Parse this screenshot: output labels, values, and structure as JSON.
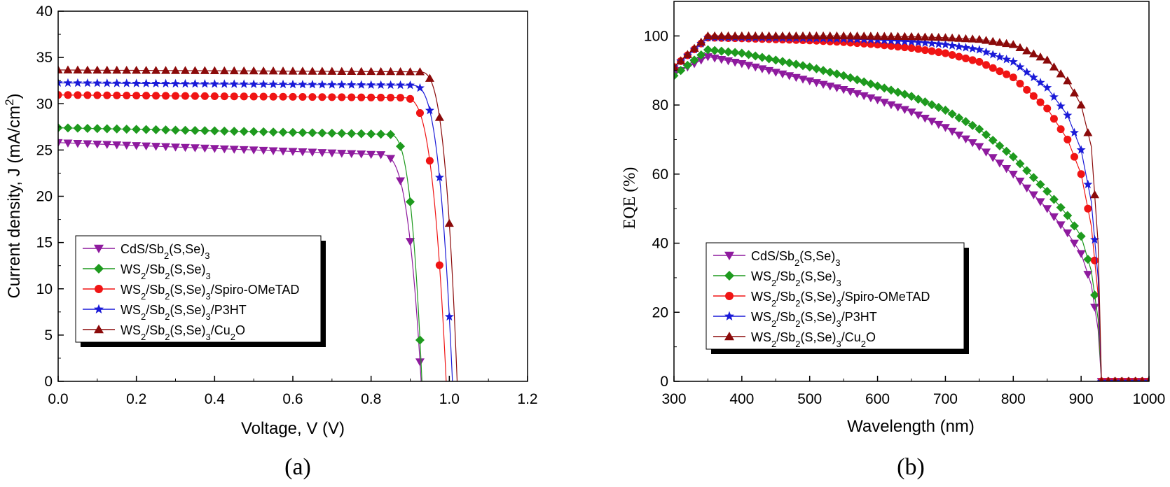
{
  "chart_data": [
    {
      "type": "line",
      "panel_label": "(a)",
      "xlabel": "Voltage, V (V)",
      "ylabel": "Current density, J (mA/cm2)",
      "ylabel_main": "Current density, J (mA/cm",
      "ylabel_sup": "2",
      "ylabel_tail": ")",
      "xlim": [
        0.0,
        1.2
      ],
      "ylim": [
        0,
        40
      ],
      "xticks": [
        "0.0",
        "0.2",
        "0.4",
        "0.6",
        "0.8",
        "1.0",
        "1.2"
      ],
      "yticks": [
        "0",
        "5",
        "10",
        "15",
        "20",
        "25",
        "30",
        "35",
        "40"
      ],
      "legend_position": "lower-left",
      "series": [
        {
          "name": "CdS/Sb2(S,Se)3",
          "label_parts": [
            [
              "CdS/Sb",
              ""
            ],
            [
              "2",
              "sub"
            ],
            [
              "(S,Se)",
              ""
            ],
            [
              "3",
              "sub"
            ]
          ],
          "color": "#8e1a9e",
          "marker": "tri-down",
          "jsc": 25.8,
          "voc": 0.928,
          "knee": 0.82,
          "flat_slope": 1.3
        },
        {
          "name": "WS2/Sb2(S,Se)3",
          "label_parts": [
            [
              "WS",
              ""
            ],
            [
              "2",
              "sub"
            ],
            [
              "/Sb",
              ""
            ],
            [
              "2",
              "sub"
            ],
            [
              "(S,Se)",
              ""
            ],
            [
              "3",
              "sub"
            ]
          ],
          "color": "#1e9a1e",
          "marker": "diamond",
          "jsc": 27.4,
          "voc": 0.93,
          "knee": 0.84,
          "flat_slope": 0.7
        },
        {
          "name": "WS2/Sb2(S,Se)3/Spiro-OMeTAD",
          "label_parts": [
            [
              "WS",
              ""
            ],
            [
              "2",
              "sub"
            ],
            [
              "/Sb",
              ""
            ],
            [
              "2",
              "sub"
            ],
            [
              "(S,Se)",
              ""
            ],
            [
              "3",
              "sub"
            ],
            [
              "/Spiro-OMeTAD",
              ""
            ]
          ],
          "color": "#f01414",
          "marker": "circle",
          "jsc": 30.95,
          "voc": 0.992,
          "knee": 0.88,
          "flat_slope": 0.3
        },
        {
          "name": "WS2/Sb2(S,Se)3/P3HT",
          "label_parts": [
            [
              "WS",
              ""
            ],
            [
              "2",
              "sub"
            ],
            [
              "/Sb",
              ""
            ],
            [
              "2",
              "sub"
            ],
            [
              "(S,Se)",
              ""
            ],
            [
              "3",
              "sub"
            ],
            [
              "/P3HT",
              ""
            ]
          ],
          "color": "#1a1ad8",
          "marker": "star",
          "jsc": 32.25,
          "voc": 1.008,
          "knee": 0.9,
          "flat_slope": 0.25
        },
        {
          "name": "WS2/Sb2(S,Se)3/Cu2O",
          "label_parts": [
            [
              "WS",
              ""
            ],
            [
              "2",
              "sub"
            ],
            [
              "/Sb",
              ""
            ],
            [
              "2",
              "sub"
            ],
            [
              "(S,Se)",
              ""
            ],
            [
              "3",
              "sub"
            ],
            [
              "/Cu",
              ""
            ],
            [
              "2",
              "sub"
            ],
            [
              "O",
              ""
            ]
          ],
          "color": "#8b0a0a",
          "marker": "tri-up",
          "jsc": 33.65,
          "voc": 1.02,
          "knee": 0.92,
          "flat_slope": 0.2
        }
      ]
    },
    {
      "type": "line",
      "panel_label": "(b)",
      "xlabel": "Wavelength (nm)",
      "ylabel": "EQE (%)",
      "xlim": [
        300,
        1000
      ],
      "ylim": [
        0,
        110
      ],
      "xticks": [
        "300",
        "400",
        "500",
        "600",
        "700",
        "800",
        "900",
        "1000"
      ],
      "yticks": [
        "0",
        "20",
        "40",
        "60",
        "80",
        "100"
      ],
      "legend_position": "lower-left",
      "series": [
        {
          "name": "CdS/Sb2(S,Se)3",
          "label_parts": [
            [
              "CdS/Sb",
              ""
            ],
            [
              "2",
              "sub"
            ],
            [
              "(S,Se)",
              ""
            ],
            [
              "3",
              "sub"
            ]
          ],
          "color": "#8e1a9e",
          "marker": "tri-down",
          "points": [
            [
              300,
              89
            ],
            [
              350,
              94
            ],
            [
              400,
              92
            ],
            [
              450,
              89.5
            ],
            [
              500,
              87
            ],
            [
              550,
              84.5
            ],
            [
              600,
              81.5
            ],
            [
              650,
              78
            ],
            [
              700,
              73.5
            ],
            [
              750,
              68
            ],
            [
              800,
              60
            ],
            [
              850,
              50
            ],
            [
              880,
              43
            ],
            [
              900,
              37
            ],
            [
              915,
              28
            ],
            [
              925,
              15
            ],
            [
              930,
              0
            ],
            [
              1000,
              0
            ]
          ]
        },
        {
          "name": "WS2/Sb2(S,Se)3",
          "label_parts": [
            [
              "WS",
              ""
            ],
            [
              "2",
              "sub"
            ],
            [
              "/Sb",
              ""
            ],
            [
              "2",
              "sub"
            ],
            [
              "(S,Se)",
              ""
            ],
            [
              "3",
              "sub"
            ]
          ],
          "color": "#1e9a1e",
          "marker": "diamond",
          "points": [
            [
              300,
              88.5
            ],
            [
              350,
              96
            ],
            [
              400,
              95
            ],
            [
              450,
              93
            ],
            [
              500,
              91
            ],
            [
              550,
              88.5
            ],
            [
              600,
              85.5
            ],
            [
              650,
              82.5
            ],
            [
              700,
              78.5
            ],
            [
              750,
              73
            ],
            [
              800,
              65
            ],
            [
              850,
              55
            ],
            [
              880,
              48
            ],
            [
              900,
              42
            ],
            [
              915,
              32
            ],
            [
              925,
              18
            ],
            [
              930,
              0
            ],
            [
              1000,
              0
            ]
          ]
        },
        {
          "name": "WS2/Sb2(S,Se)3/Spiro-OMeTAD",
          "label_parts": [
            [
              "WS",
              ""
            ],
            [
              "2",
              "sub"
            ],
            [
              "/Sb",
              ""
            ],
            [
              "2",
              "sub"
            ],
            [
              "(S,Se)",
              ""
            ],
            [
              "3",
              "sub"
            ],
            [
              "/Spiro-OMeTAD",
              ""
            ]
          ],
          "color": "#f01414",
          "marker": "circle",
          "points": [
            [
              300,
              91
            ],
            [
              350,
              99.5
            ],
            [
              400,
              99.3
            ],
            [
              450,
              99
            ],
            [
              500,
              98.7
            ],
            [
              550,
              98.2
            ],
            [
              600,
              97.5
            ],
            [
              650,
              96.5
            ],
            [
              700,
              95
            ],
            [
              750,
              92.5
            ],
            [
              800,
              88
            ],
            [
              850,
              79
            ],
            [
              880,
              70
            ],
            [
              900,
              60
            ],
            [
              915,
              45
            ],
            [
              925,
              25
            ],
            [
              930,
              0
            ],
            [
              1000,
              0
            ]
          ]
        },
        {
          "name": "WS2/Sb2(S,Se)3/P3HT",
          "label_parts": [
            [
              "WS",
              ""
            ],
            [
              "2",
              "sub"
            ],
            [
              "/Sb",
              ""
            ],
            [
              "2",
              "sub"
            ],
            [
              "(S,Se)",
              ""
            ],
            [
              "3",
              "sub"
            ],
            [
              "/P3HT",
              ""
            ]
          ],
          "color": "#1a1ad8",
          "marker": "star",
          "points": [
            [
              300,
              91
            ],
            [
              350,
              99.5
            ],
            [
              400,
              99.5
            ],
            [
              450,
              99.4
            ],
            [
              500,
              99.3
            ],
            [
              550,
              99.1
            ],
            [
              600,
              98.8
            ],
            [
              650,
              98.3
            ],
            [
              700,
              97.5
            ],
            [
              750,
              96
            ],
            [
              800,
              92.5
            ],
            [
              850,
              85
            ],
            [
              880,
              77
            ],
            [
              900,
              67
            ],
            [
              915,
              52
            ],
            [
              925,
              30
            ],
            [
              930,
              0
            ],
            [
              1000,
              0
            ]
          ]
        },
        {
          "name": "WS2/Sb2(S,Se)3/Cu2O",
          "label_parts": [
            [
              "WS",
              ""
            ],
            [
              "2",
              "sub"
            ],
            [
              "/Sb",
              ""
            ],
            [
              "2",
              "sub"
            ],
            [
              "(S,Se)",
              ""
            ],
            [
              "3",
              "sub"
            ],
            [
              "/Cu",
              ""
            ],
            [
              "2",
              "sub"
            ],
            [
              "O",
              ""
            ]
          ],
          "color": "#8b0a0a",
          "marker": "tri-up",
          "points": [
            [
              300,
              91
            ],
            [
              350,
              100
            ],
            [
              400,
              100
            ],
            [
              450,
              100
            ],
            [
              500,
              100
            ],
            [
              550,
              100
            ],
            [
              600,
              99.9
            ],
            [
              650,
              99.8
            ],
            [
              700,
              99.5
            ],
            [
              750,
              99
            ],
            [
              800,
              97.5
            ],
            [
              850,
              93
            ],
            [
              880,
              87
            ],
            [
              900,
              80
            ],
            [
              915,
              68
            ],
            [
              925,
              40
            ],
            [
              930,
              0
            ],
            [
              1000,
              0
            ]
          ]
        }
      ]
    }
  ]
}
